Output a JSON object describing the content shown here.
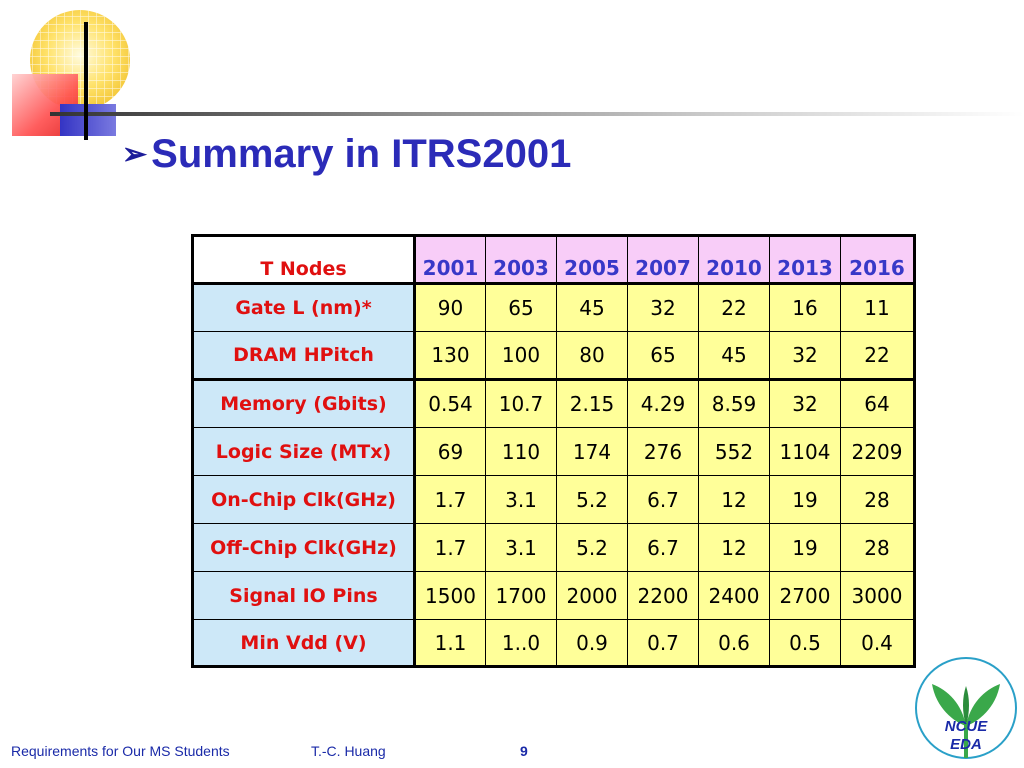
{
  "slide": {
    "title": "Summary in ITRS2001",
    "title_bullet": "➢"
  },
  "table": {
    "corner_label": "T Nodes",
    "years": [
      "2001",
      "2003",
      "2005",
      "2007",
      "2010",
      "2013",
      "2016"
    ],
    "rows": [
      {
        "label": "Gate L (nm)*",
        "values": [
          "90",
          "65",
          "45",
          "32",
          "22",
          "16",
          "11"
        ]
      },
      {
        "label": "DRAM HPitch",
        "values": [
          "130",
          "100",
          "80",
          "65",
          "45",
          "32",
          "22"
        ]
      },
      {
        "label": "Memory (Gbits)",
        "values": [
          "0.54",
          "10.7",
          "2.15",
          "4.29",
          "8.59",
          "32",
          "64"
        ]
      },
      {
        "label": "Logic Size (MTx)",
        "values": [
          "69",
          "110",
          "174",
          "276",
          "552",
          "1104",
          "2209"
        ]
      },
      {
        "label": "On-Chip Clk(GHz)",
        "values": [
          "1.7",
          "3.1",
          "5.2",
          "6.7",
          "12",
          "19",
          "28"
        ]
      },
      {
        "label": "Off-Chip Clk(GHz)",
        "values": [
          "1.7",
          "3.1",
          "5.2",
          "6.7",
          "12",
          "19",
          "28"
        ]
      },
      {
        "label": "Signal IO Pins",
        "values": [
          "1500",
          "1700",
          "2000",
          "2200",
          "2400",
          "2700",
          "3000"
        ]
      },
      {
        "label": "Min Vdd (V)",
        "values": [
          "1.1",
          "1..0",
          "0.9",
          "0.7",
          "0.6",
          "0.5",
          "0.4"
        ]
      }
    ]
  },
  "footer": {
    "course": "Requirements for Our MS Students",
    "author": "T.-C. Huang",
    "page": "9"
  },
  "logo": {
    "line1": "NCUE",
    "line2": "EDA"
  },
  "colors": {
    "title": "#2b2bb8",
    "label_red": "#e01010",
    "header_pink": "#f8cdf8",
    "row_label_blue": "#cde8f8",
    "cell_yellow": "#ffff99",
    "footer_blue": "#1a2aa8"
  }
}
